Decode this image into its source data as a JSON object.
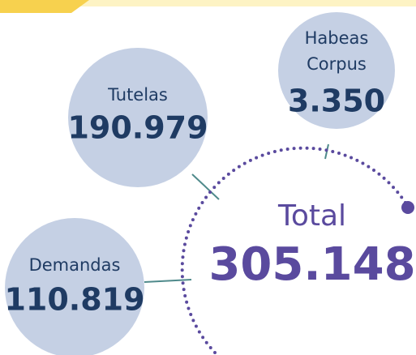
{
  "items": [
    {
      "label": "Tutelas",
      "value": "190.979"
    },
    {
      "label": "Habeas",
      "label2": "Corpus",
      "value": "3.350"
    },
    {
      "label": "Demandas",
      "value": "110.819"
    }
  ],
  "total": {
    "label": "Total",
    "value": "305.148"
  }
}
